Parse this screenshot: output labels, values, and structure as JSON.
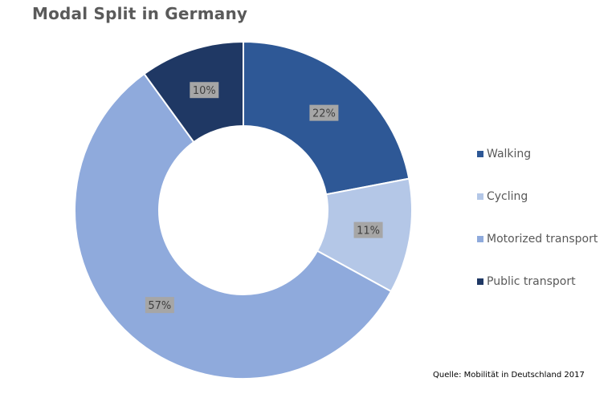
{
  "chart_data": {
    "type": "pie",
    "title": "Modal Split in Germany",
    "categories": [
      "Walking",
      "Cycling",
      "Motorized transport",
      "Public transport"
    ],
    "values": [
      22,
      11,
      57,
      10
    ],
    "value_labels": [
      "22%",
      "11%",
      "57%",
      "10%"
    ],
    "colors": [
      "#2e5896",
      "#b4c7e7",
      "#8faadc",
      "#1f3864"
    ],
    "donut": true,
    "legend_position": "right"
  },
  "source": "Quelle: Mobilität in Deutschland 2017"
}
